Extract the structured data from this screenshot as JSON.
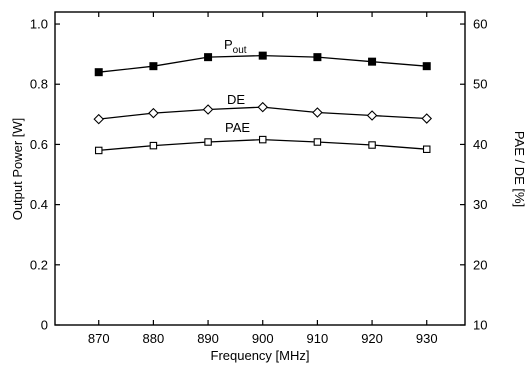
{
  "chart_data": {
    "type": "line",
    "xlabel": "Frequency [MHz]",
    "ylabel_left": "Output Power [W]",
    "ylabel_right": "PAE / DE [%]",
    "x": [
      870,
      880,
      890,
      900,
      910,
      920,
      930
    ],
    "x_ticks": [
      "870",
      "880",
      "890",
      "900",
      "910",
      "920",
      "930"
    ],
    "xlim": [
      862,
      937
    ],
    "ylim_left": [
      0,
      1.04
    ],
    "ylim_right": [
      10,
      62
    ],
    "y_ticks_left": [
      "0",
      "0.2",
      "0.4",
      "0.6",
      "0.8",
      "1.0"
    ],
    "y_ticks_right": [
      "10",
      "20",
      "30",
      "40",
      "50",
      "60"
    ],
    "grid": false,
    "series": [
      {
        "key": "pout",
        "label_main": "P",
        "label_sub": "out",
        "axis": "left",
        "marker": "filled-square",
        "values": [
          0.84,
          0.86,
          0.89,
          0.895,
          0.89,
          0.875,
          0.86
        ]
      },
      {
        "key": "de",
        "label_main": "DE",
        "label_sub": "",
        "axis": "right",
        "marker": "open-diamond",
        "values": [
          44.2,
          45.2,
          45.8,
          46.2,
          45.3,
          44.8,
          44.3
        ]
      },
      {
        "key": "pae",
        "label_main": "PAE",
        "label_sub": "",
        "axis": "right",
        "marker": "open-square",
        "values": [
          39.0,
          39.8,
          40.4,
          40.8,
          40.4,
          39.9,
          39.2
        ]
      }
    ]
  }
}
